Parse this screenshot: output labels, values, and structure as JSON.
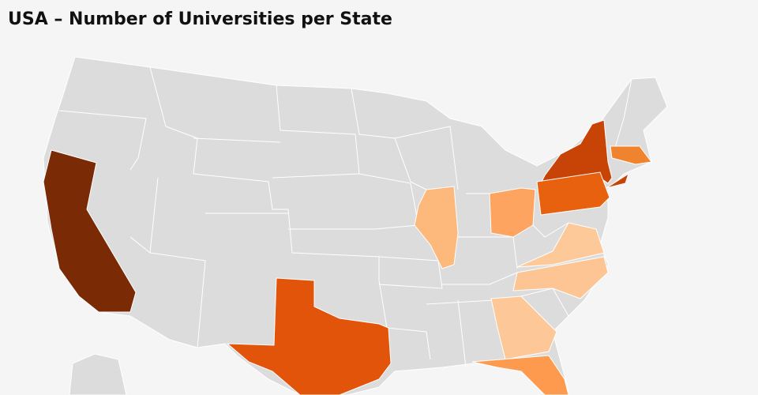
{
  "header": {
    "title": "USA – Number of Universities per State"
  }
}
